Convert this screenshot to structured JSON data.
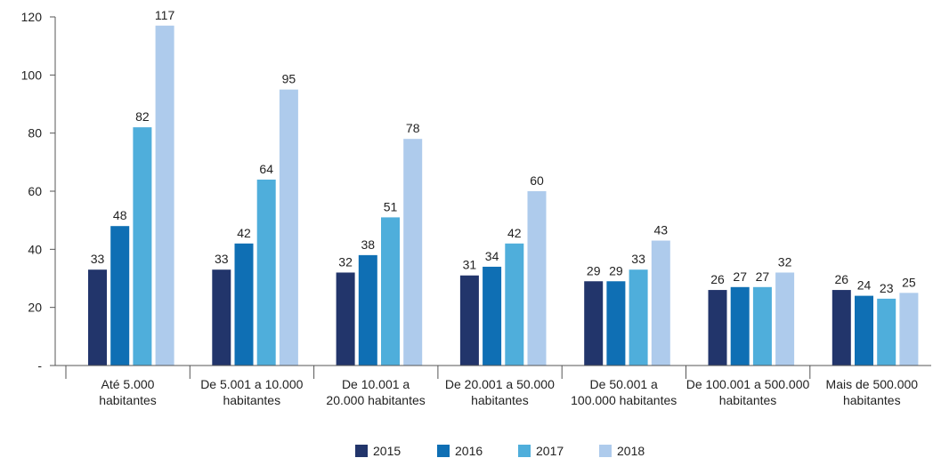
{
  "chart_data": {
    "type": "bar",
    "categories": [
      [
        "Até 5.000",
        "habitantes"
      ],
      [
        "De 5.001 a 10.000",
        "habitantes"
      ],
      [
        "De 10.001 a",
        "20.000 habitantes"
      ],
      [
        "De 20.001 a 50.000",
        "habitantes"
      ],
      [
        "De 50.001 a",
        "100.000 habitantes"
      ],
      [
        "De 100.001 a 500.000",
        "habitantes"
      ],
      [
        "Mais de 500.000",
        "habitantes"
      ]
    ],
    "series": [
      {
        "name": "2015",
        "color": "#22356b",
        "values": [
          33,
          33,
          32,
          31,
          29,
          26,
          26
        ]
      },
      {
        "name": "2016",
        "color": "#0f6fb4",
        "values": [
          48,
          42,
          38,
          34,
          29,
          27,
          24
        ]
      },
      {
        "name": "2017",
        "color": "#4faedb",
        "values": [
          82,
          64,
          51,
          42,
          33,
          27,
          23
        ]
      },
      {
        "name": "2018",
        "color": "#aecbec",
        "values": [
          117,
          95,
          78,
          60,
          43,
          32,
          25
        ]
      }
    ],
    "data_labels": [
      [
        "33",
        "33",
        "32",
        "31",
        "29",
        "26",
        "26"
      ],
      [
        "48",
        "42",
        "38",
        "34",
        "29",
        "27",
        "24"
      ],
      [
        "82",
        "64",
        "51",
        "42",
        "33",
        "27",
        "23"
      ],
      [
        "117",
        "95",
        "78",
        "60",
        "43",
        "32",
        "25"
      ]
    ],
    "yticks": [
      0,
      20,
      40,
      60,
      80,
      100,
      120
    ],
    "ytick_labels": [
      "-",
      "20",
      "40",
      "60",
      "80",
      "100",
      "120"
    ],
    "ylim": [
      0,
      120
    ],
    "title": "",
    "xlabel": "",
    "ylabel": "",
    "grid": false,
    "legend": "bottom-center"
  }
}
